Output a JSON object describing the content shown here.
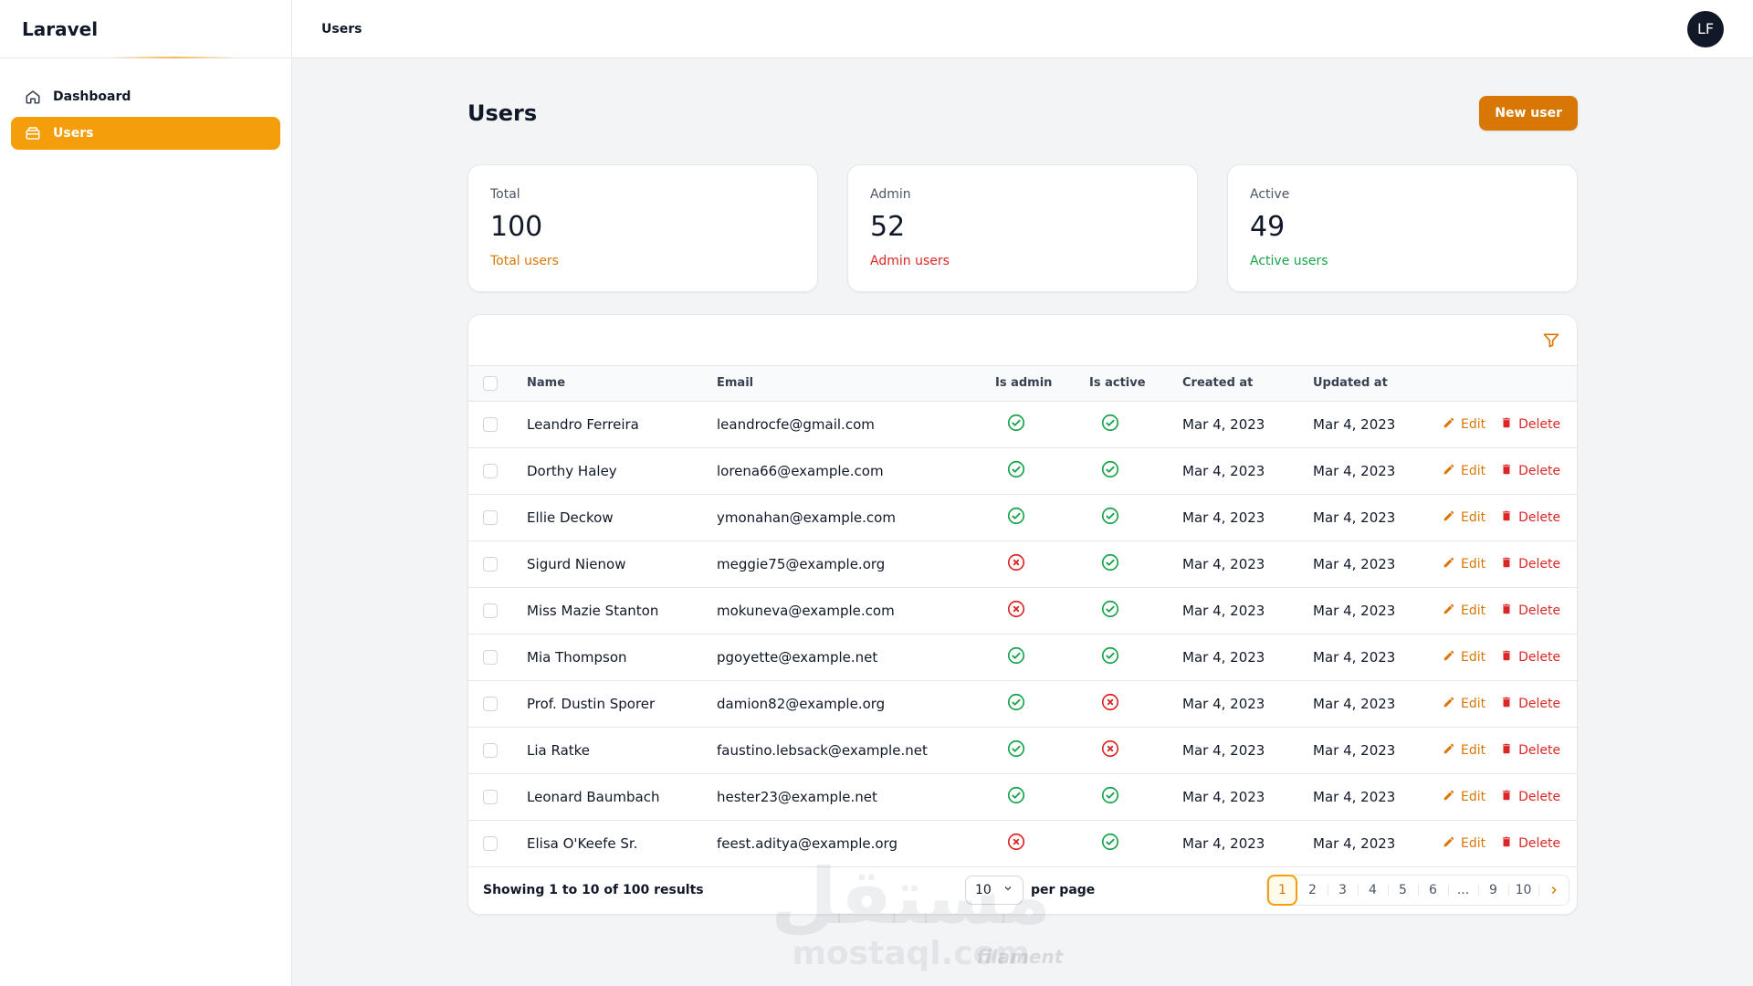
{
  "app": {
    "brand": "Laravel"
  },
  "sidebar": {
    "items": [
      {
        "label": "Dashboard",
        "icon": "home-icon",
        "active": false
      },
      {
        "label": "Users",
        "icon": "users-icon",
        "active": true
      }
    ]
  },
  "topbar": {
    "breadcrumb": "Users",
    "avatar_initials": "LF"
  },
  "page": {
    "title": "Users",
    "new_button": "New user"
  },
  "stats": [
    {
      "label": "Total",
      "value": "100",
      "desc": "Total users",
      "color": "#d97706"
    },
    {
      "label": "Admin",
      "value": "52",
      "desc": "Admin users",
      "color": "#dc2626"
    },
    {
      "label": "Active",
      "value": "49",
      "desc": "Active users",
      "color": "#16a34a"
    }
  ],
  "table": {
    "columns": [
      "Name",
      "Email",
      "Is admin",
      "Is active",
      "Created at",
      "Updated at"
    ],
    "edit_label": "Edit",
    "delete_label": "Delete",
    "rows": [
      {
        "name": "Leandro Ferreira",
        "email": "leandrocfe@gmail.com",
        "is_admin": true,
        "is_active": true,
        "created": "Mar 4, 2023",
        "updated": "Mar 4, 2023"
      },
      {
        "name": "Dorthy Haley",
        "email": "lorena66@example.com",
        "is_admin": true,
        "is_active": true,
        "created": "Mar 4, 2023",
        "updated": "Mar 4, 2023"
      },
      {
        "name": "Ellie Deckow",
        "email": "ymonahan@example.com",
        "is_admin": true,
        "is_active": true,
        "created": "Mar 4, 2023",
        "updated": "Mar 4, 2023"
      },
      {
        "name": "Sigurd Nienow",
        "email": "meggie75@example.org",
        "is_admin": false,
        "is_active": true,
        "created": "Mar 4, 2023",
        "updated": "Mar 4, 2023"
      },
      {
        "name": "Miss Mazie Stanton",
        "email": "mokuneva@example.com",
        "is_admin": false,
        "is_active": true,
        "created": "Mar 4, 2023",
        "updated": "Mar 4, 2023"
      },
      {
        "name": "Mia Thompson",
        "email": "pgoyette@example.net",
        "is_admin": true,
        "is_active": true,
        "created": "Mar 4, 2023",
        "updated": "Mar 4, 2023"
      },
      {
        "name": "Prof. Dustin Sporer",
        "email": "damion82@example.org",
        "is_admin": true,
        "is_active": false,
        "created": "Mar 4, 2023",
        "updated": "Mar 4, 2023"
      },
      {
        "name": "Lia Ratke",
        "email": "faustino.lebsack@example.net",
        "is_admin": true,
        "is_active": false,
        "created": "Mar 4, 2023",
        "updated": "Mar 4, 2023"
      },
      {
        "name": "Leonard Baumbach",
        "email": "hester23@example.net",
        "is_admin": true,
        "is_active": true,
        "created": "Mar 4, 2023",
        "updated": "Mar 4, 2023"
      },
      {
        "name": "Elisa O'Keefe Sr.",
        "email": "feest.aditya@example.org",
        "is_admin": false,
        "is_active": true,
        "created": "Mar 4, 2023",
        "updated": "Mar 4, 2023"
      }
    ]
  },
  "pagination": {
    "showing": "Showing 1 to 10 of 100 results",
    "per_page_value": "10",
    "per_page_label": "per page",
    "pages": [
      "1",
      "2",
      "3",
      "4",
      "5",
      "6",
      "...",
      "9",
      "10"
    ],
    "current": "1"
  },
  "watermark": {
    "arabic": "مستقل",
    "latin": "mostaql.com",
    "filament": "filament"
  },
  "colors": {
    "accent": "#f59e0b",
    "success": "#16a34a",
    "danger": "#dc2626"
  }
}
